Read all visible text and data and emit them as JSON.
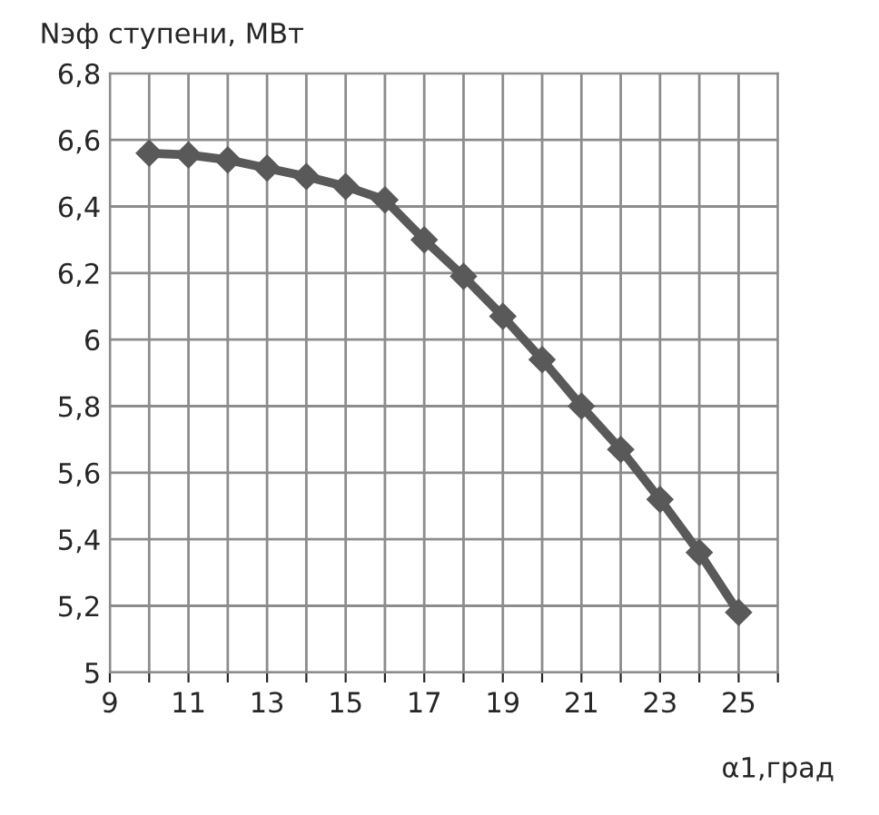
{
  "chart_data": {
    "type": "line",
    "ylabel": "Nэф ступени, МВт",
    "xlabel": "α1,град",
    "x": [
      10,
      11,
      12,
      13,
      14,
      15,
      16,
      17,
      18,
      19,
      20,
      21,
      22,
      23,
      24,
      25
    ],
    "series": [
      {
        "color": "#595959",
        "values": [
          6.56,
          6.555,
          6.54,
          6.515,
          6.49,
          6.46,
          6.42,
          6.3,
          6.19,
          6.07,
          5.94,
          5.8,
          5.67,
          5.52,
          5.36,
          5.18
        ]
      }
    ],
    "xlim": [
      9,
      26
    ],
    "xticks": [
      9,
      {
        "value": 10,
        "label": null
      },
      11,
      {
        "value": 12,
        "label": null
      },
      13,
      {
        "value": 14,
        "label": null
      },
      15,
      {
        "value": 16,
        "label": null
      },
      17,
      {
        "value": 18,
        "label": null
      },
      19,
      {
        "value": 20,
        "label": null
      },
      21,
      {
        "value": 22,
        "label": null
      },
      23,
      {
        "value": 24,
        "label": null
      },
      25,
      {
        "value": 26,
        "label": null
      }
    ],
    "ylim": [
      5,
      6.8
    ],
    "yticks": [
      {
        "value": 5,
        "label": "5"
      },
      {
        "value": 5.2,
        "label": "5,2"
      },
      {
        "value": 5.4,
        "label": "5,4"
      },
      {
        "value": 5.6,
        "label": "5,6"
      },
      {
        "value": 5.8,
        "label": "5,8"
      },
      {
        "value": 6,
        "label": "6"
      },
      {
        "value": 6.2,
        "label": "6,2"
      },
      {
        "value": 6.4,
        "label": "6,4"
      },
      {
        "value": 6.6,
        "label": "6,6"
      },
      {
        "value": 6.8,
        "label": "6,8"
      }
    ],
    "grid": true,
    "marker": "diamond",
    "line_style": "solid",
    "legend": false
  }
}
